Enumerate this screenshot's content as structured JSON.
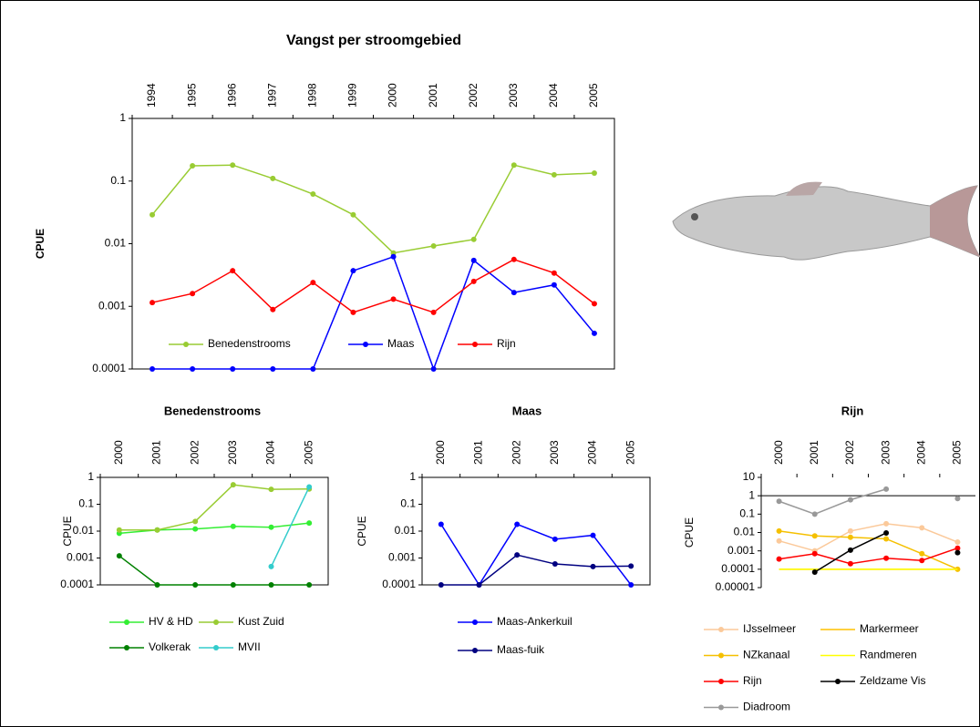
{
  "chart_data": [
    {
      "type": "line",
      "title": "Vangst per stroomgebied",
      "ylabel": "CPUE",
      "log": true,
      "legend": "lower center",
      "categories": [
        "1994",
        "1995",
        "1996",
        "1997",
        "1998",
        "1999",
        "2000",
        "2001",
        "2002",
        "2003",
        "2004",
        "2005"
      ],
      "ylim": [
        0.0001,
        1
      ],
      "yticks": [
        0.0001,
        0.001,
        0.01,
        0.1,
        1
      ],
      "series": [
        {
          "name": "Benedenstrooms",
          "color": "#99cc33",
          "values": [
            0.029,
            0.175,
            0.18,
            0.11,
            0.062,
            0.029,
            0.0071,
            0.0092,
            0.0117,
            0.18,
            0.126,
            0.134
          ]
        },
        {
          "name": "Maas",
          "color": "#0000ff",
          "values": [
            0.0001,
            0.0001,
            0.0001,
            0.0001,
            0.0001,
            0.0037,
            0.0062,
            0.0001,
            0.0054,
            0.00166,
            0.0022,
            0.00037
          ]
        },
        {
          "name": "Rijn",
          "color": "#ff0000",
          "values": [
            0.00115,
            0.0016,
            0.0037,
            0.00089,
            0.0024,
            0.0008,
            0.0013,
            0.0008,
            0.0025,
            0.0056,
            0.0034,
            0.0011
          ]
        }
      ]
    },
    {
      "type": "line",
      "title": "Benedenstrooms",
      "ylabel": "CPUE",
      "log": true,
      "legend": "bottom",
      "categories": [
        "2000",
        "2001",
        "2002",
        "2003",
        "2004",
        "2005"
      ],
      "ylim": [
        0.0001,
        1
      ],
      "yticks": [
        0.0001,
        0.001,
        0.01,
        0.1,
        1
      ],
      "series": [
        {
          "name": "HV & HD",
          "color": "#33ee33",
          "values": [
            0.0083,
            0.011,
            0.012,
            0.015,
            0.014,
            0.02
          ]
        },
        {
          "name": "Kust Zuid",
          "color": "#99cc33",
          "values": [
            0.011,
            0.011,
            0.023,
            0.53,
            0.36,
            0.37
          ]
        },
        {
          "name": "Volkerak",
          "color": "#008000",
          "values": [
            0.0012,
            0.0001,
            0.0001,
            0.0001,
            0.0001,
            0.0001
          ]
        },
        {
          "name": "MVII",
          "color": "#33cccc",
          "values": [
            null,
            null,
            null,
            null,
            0.00048,
            0.44
          ]
        }
      ]
    },
    {
      "type": "line",
      "title": "Maas",
      "ylabel": "CPUE",
      "log": true,
      "legend": "bottom",
      "categories": [
        "2000",
        "2001",
        "2002",
        "2003",
        "2004",
        "2005"
      ],
      "ylim": [
        0.0001,
        1
      ],
      "yticks": [
        0.0001,
        0.001,
        0.01,
        0.1,
        1
      ],
      "series": [
        {
          "name": "Maas-Ankerkuil",
          "color": "#0000ff",
          "values": [
            0.018,
            0.0001,
            0.018,
            0.005,
            0.007,
            0.0001
          ]
        },
        {
          "name": "Maas-fuik",
          "color": "#000080",
          "values": [
            0.0001,
            0.0001,
            0.0013,
            0.0006,
            0.00048,
            0.0005
          ]
        }
      ]
    },
    {
      "type": "line",
      "title": "Rijn",
      "ylabel": "CPUE",
      "log": true,
      "legend": "bottom",
      "x_axis_at": 1,
      "categories": [
        "2000",
        "2001",
        "2002",
        "2003",
        "2004",
        "2005"
      ],
      "ylim": [
        1e-05,
        10
      ],
      "yticks": [
        1e-05,
        0.0001,
        0.001,
        0.01,
        0.1,
        1,
        10
      ],
      "series": [
        {
          "name": "IJsselmeer",
          "color": "#fbc99a",
          "values": [
            0.0035,
            0.001,
            0.012,
            0.03,
            0.018,
            0.003
          ]
        },
        {
          "name": "Markermeer",
          "color": "#ffc000",
          "markers": false,
          "values": [
            0.0001,
            0.0001,
            0.0001,
            0.0001,
            0.0001,
            0.0001
          ]
        },
        {
          "name": "NZkanaal",
          "color": "#f5c000",
          "values": [
            0.012,
            0.0065,
            0.0055,
            0.0045,
            0.0007,
            0.0001
          ]
        },
        {
          "name": "Randmeren",
          "color": "#ffff00",
          "markers": false,
          "values": [
            0.0001,
            0.0001,
            0.0001,
            0.0001,
            0.0001,
            0.0001
          ]
        },
        {
          "name": "Rijn",
          "color": "#ff0000",
          "values": [
            0.00036,
            0.0007,
            0.0002,
            0.0004,
            0.0003,
            0.0014
          ]
        },
        {
          "name": "Zeldzame Vis",
          "color": "#000000",
          "values": [
            null,
            7e-05,
            0.0011,
            0.0095,
            null,
            0.0008
          ]
        },
        {
          "name": "Diadroom",
          "color": "#999999",
          "values": [
            0.5,
            0.1,
            0.6,
            2.3,
            null,
            0.7
          ]
        }
      ]
    }
  ]
}
